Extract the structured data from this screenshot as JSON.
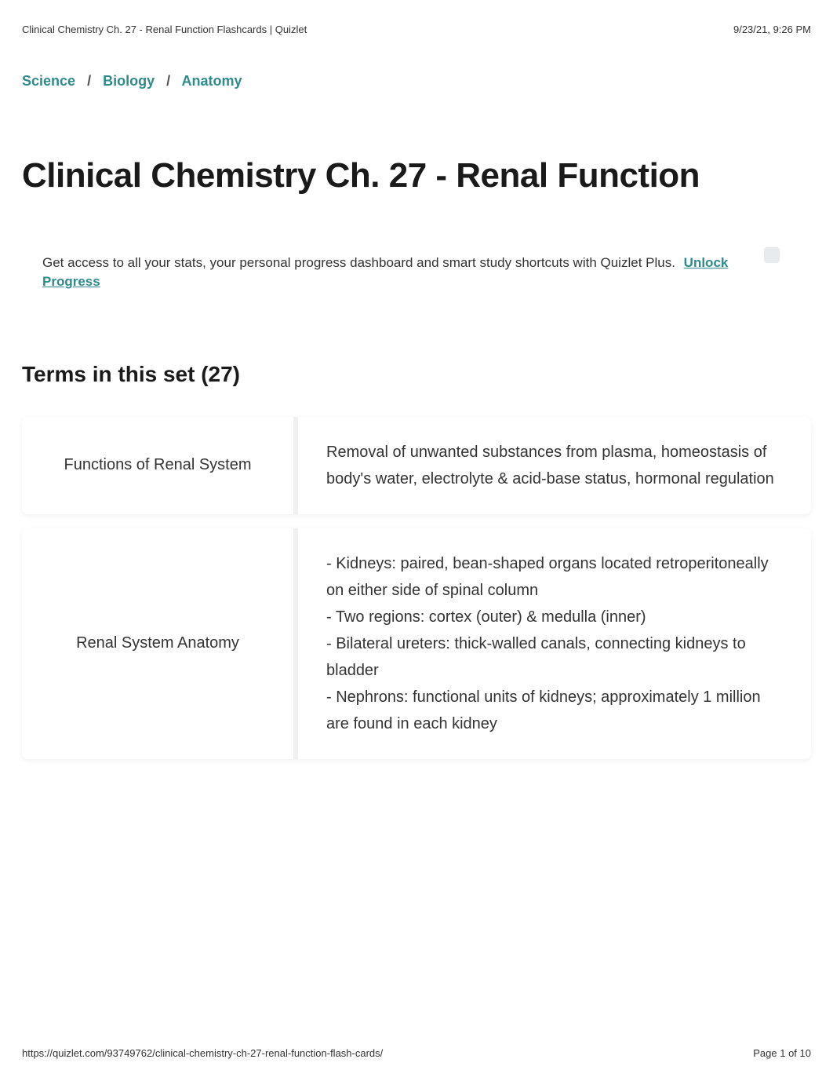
{
  "header": {
    "doc_title": "Clinical Chemistry Ch. 27 - Renal Function Flashcards | Quizlet",
    "timestamp": "9/23/21, 9:26 PM"
  },
  "breadcrumb": {
    "items": [
      {
        "label": "Science"
      },
      {
        "label": "Biology"
      },
      {
        "label": "Anatomy"
      }
    ],
    "separator": "/"
  },
  "title": "Clinical Chemistry Ch. 27 - Renal Function",
  "promo": {
    "text": "Get access to all your stats, your personal progress dashboard and smart study shortcuts with Quizlet Plus.",
    "link_text": "Unlock Progress"
  },
  "terms_heading": "Terms in this set (27)",
  "cards": [
    {
      "term": "Functions of Renal System",
      "definition": "Removal of unwanted substances from plasma, homeostasis of body's water, electrolyte & acid-base status, hormonal regulation"
    },
    {
      "term": "Renal System Anatomy",
      "definition": "- Kidneys: paired, bean-shaped organs located retroperitoneally on either side of spinal column\n- Two regions: cortex (outer) & medulla (inner)\n- Bilateral ureters: thick-walled canals, connecting kidneys to bladder\n- Nephrons: functional units of kidneys; approximately 1 million are found in each kidney"
    }
  ],
  "footer": {
    "url": "https://quizlet.com/93749762/clinical-chemistry-ch-27-renal-function-flash-cards/",
    "page_indicator": "Page 1 of 10"
  },
  "colors": {
    "link": "#2e8b8b",
    "text": "#333333",
    "heading": "#1a1a1a",
    "card_bg": "#ffffff",
    "divider": "#f0f0f0"
  }
}
